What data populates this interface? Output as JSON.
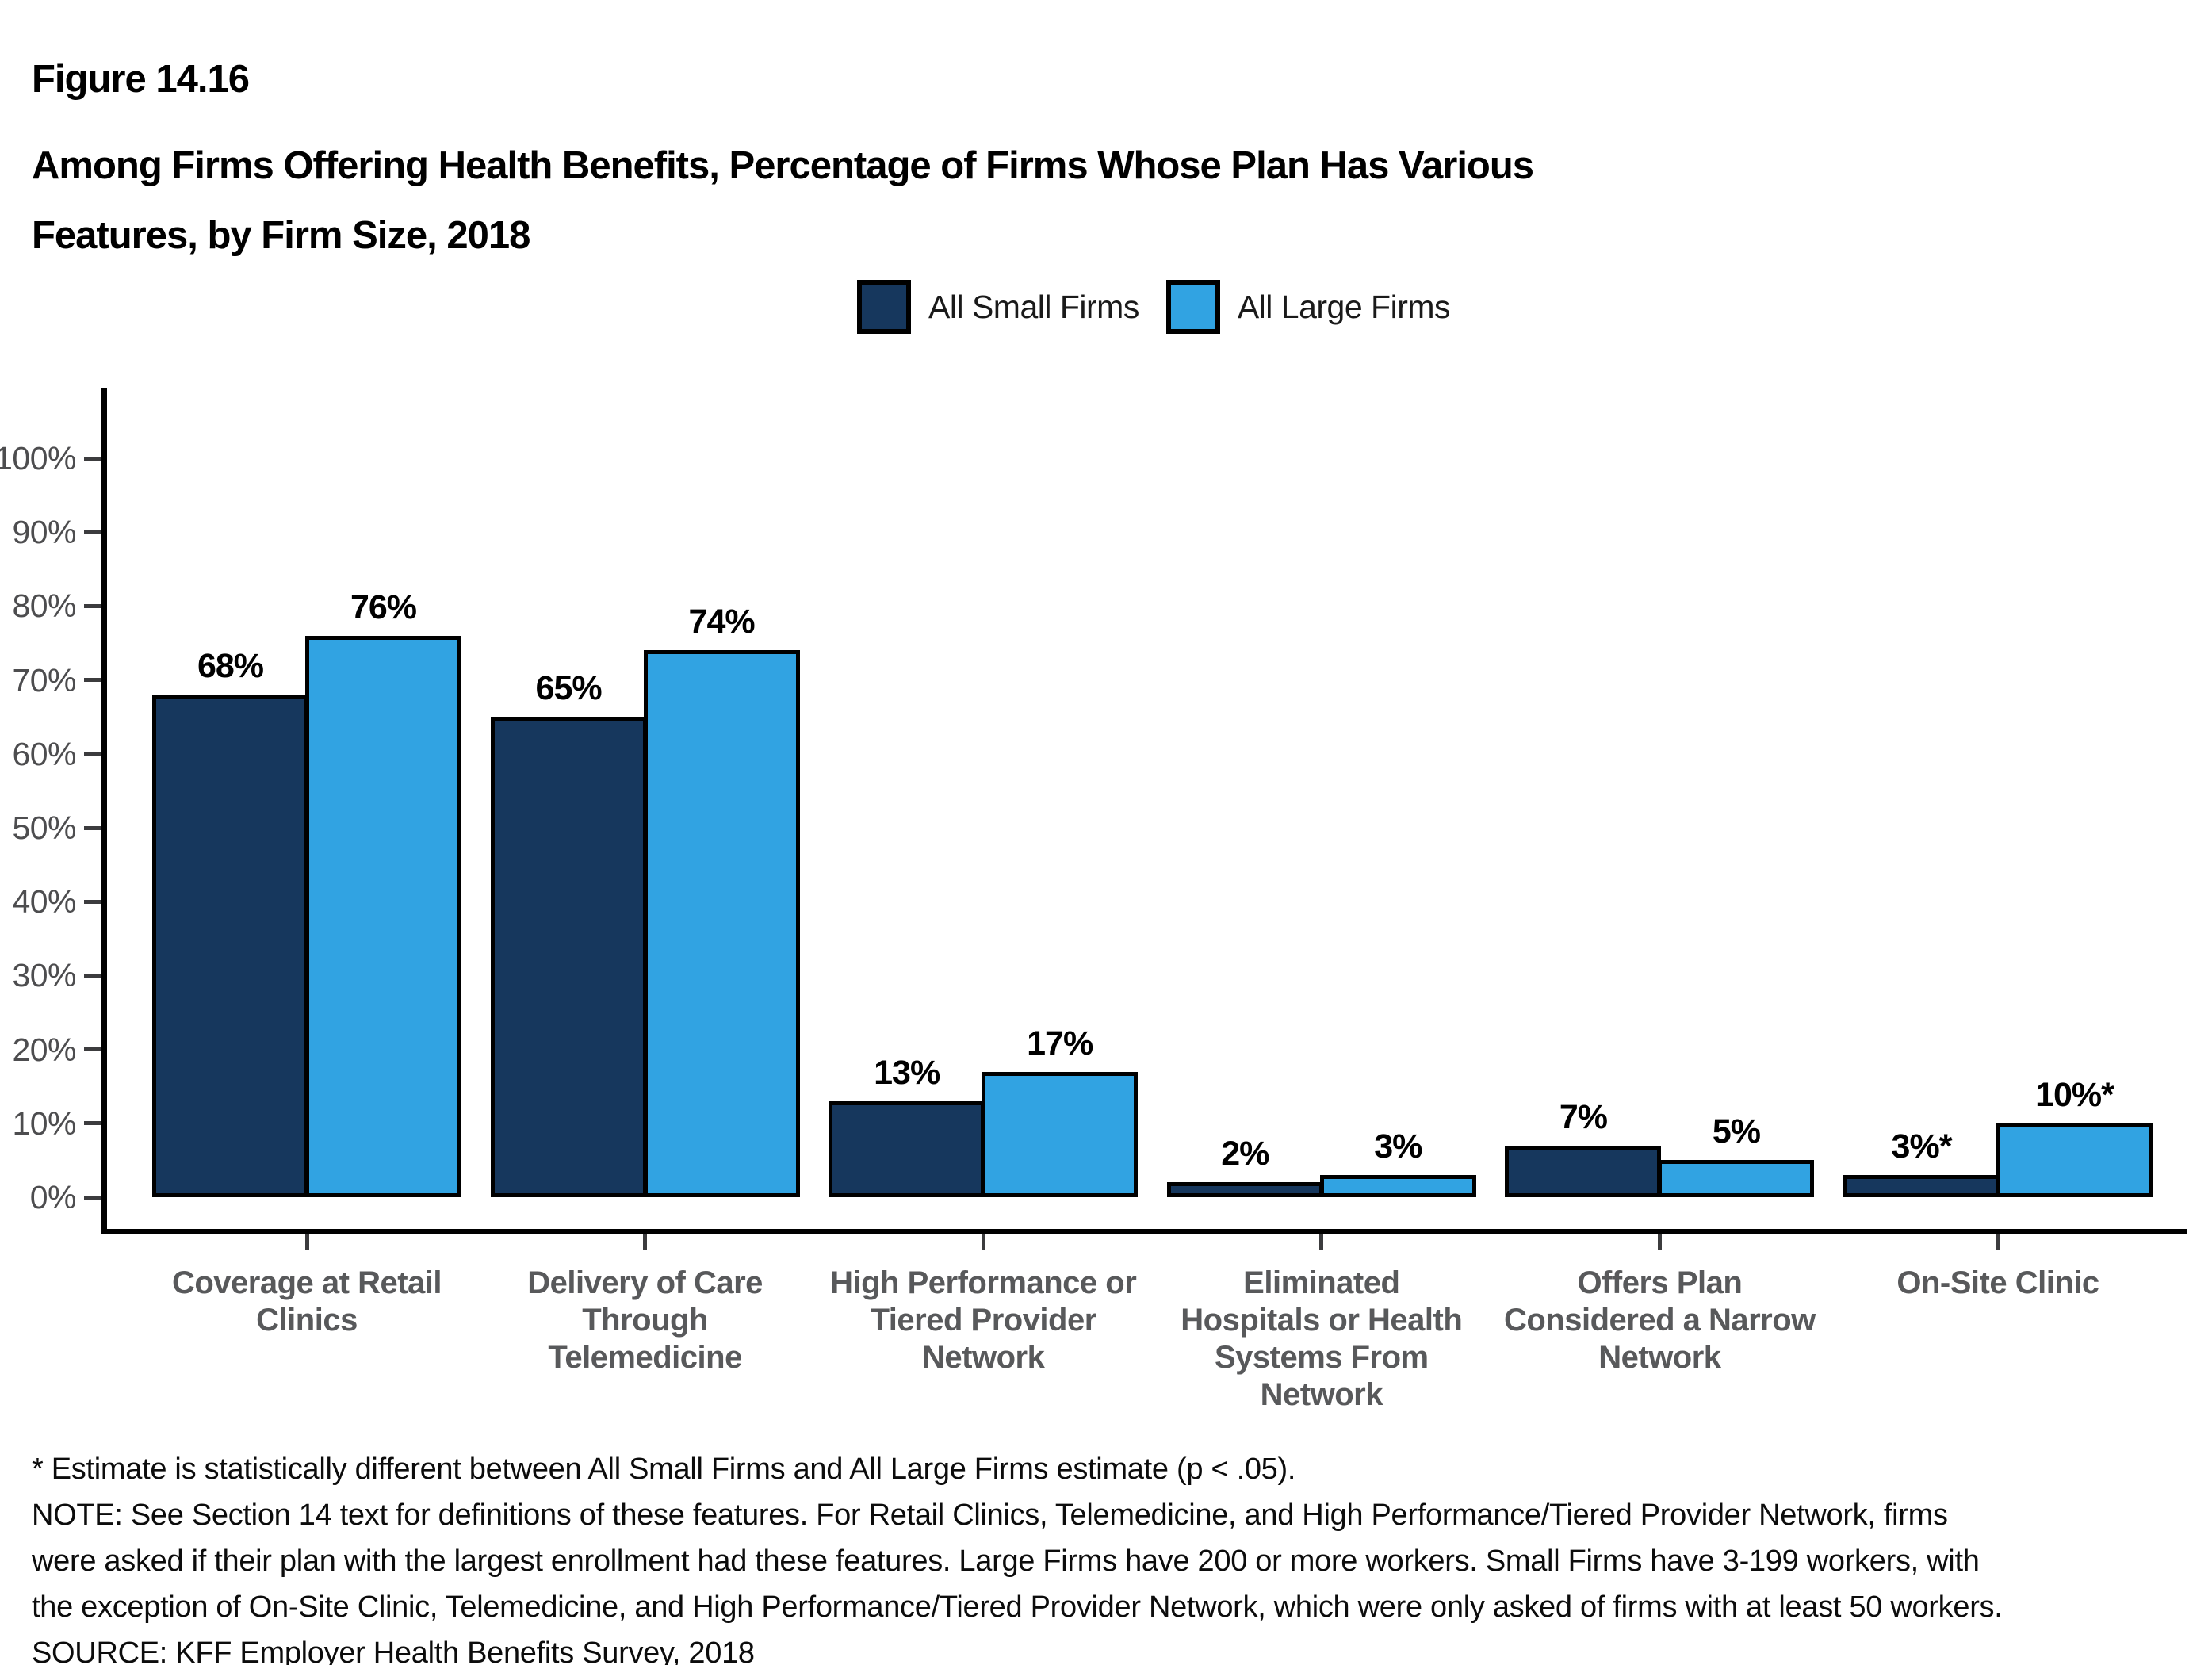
{
  "figure": {
    "title": "Figure 14.16",
    "subtitle_lines": [
      "Among Firms Offering Health Benefits, Percentage of Firms Whose Plan Has Various",
      "Features, by Firm Size, 2018"
    ],
    "footnotes": [
      "* Estimate is statistically different between All Small Firms and All Large Firms estimate (p < .05).",
      "NOTE: See Section 14 text for definitions of these features. For Retail Clinics, Telemedicine, and High Performance/Tiered Provider Network, firms",
      "were asked if their plan with the largest enrollment had these features. Large Firms have 200 or more workers. Small Firms have 3-199 workers, with",
      "the exception of On-Site Clinic, Telemedicine, and High Performance/Tiered Provider Network, which were only asked of firms with at least 50 workers.",
      "SOURCE: KFF Employer Health Benefits Survey, 2018"
    ]
  },
  "chart_data": {
    "type": "bar",
    "title": "Figure 14.16",
    "subtitle": "Among Firms Offering Health Benefits, Percentage of Firms Whose Plan Has Various Features, by Firm Size, 2018",
    "categories": [
      "Coverage at Retail\nClinics",
      "Delivery of Care\nThrough\nTelemedicine",
      "High Performance or\nTiered Provider\nNetwork",
      "Eliminated\nHospitals or Health\nSystems From\nNetwork",
      "Offers Plan\nConsidered a Narrow\nNetwork",
      "On-Site Clinic"
    ],
    "series": [
      {
        "name": "All Small Firms",
        "color": "#16375d",
        "values": [
          68,
          65,
          13,
          2,
          7,
          3
        ],
        "labels": [
          "68%",
          "65%",
          "13%",
          "2%",
          "7%",
          "3%*"
        ]
      },
      {
        "name": "All Large Firms",
        "color": "#31a3e2",
        "values": [
          76,
          74,
          17,
          3,
          5,
          10
        ],
        "labels": [
          "76%",
          "74%",
          "17%",
          "3%",
          "5%",
          "10%*"
        ]
      }
    ],
    "y_ticks": [
      "0%",
      "10%",
      "20%",
      "30%",
      "40%",
      "50%",
      "60%",
      "70%",
      "80%",
      "90%",
      "100%"
    ],
    "ylim": [
      0,
      110
    ],
    "xlabel": "",
    "ylabel": "",
    "grid": false,
    "legend_position": "top-center",
    "bar_outline_color": "#000000",
    "axis_color": "#000000",
    "tick_label_color": "#4d4d4f",
    "category_label_color": "#58595b"
  }
}
